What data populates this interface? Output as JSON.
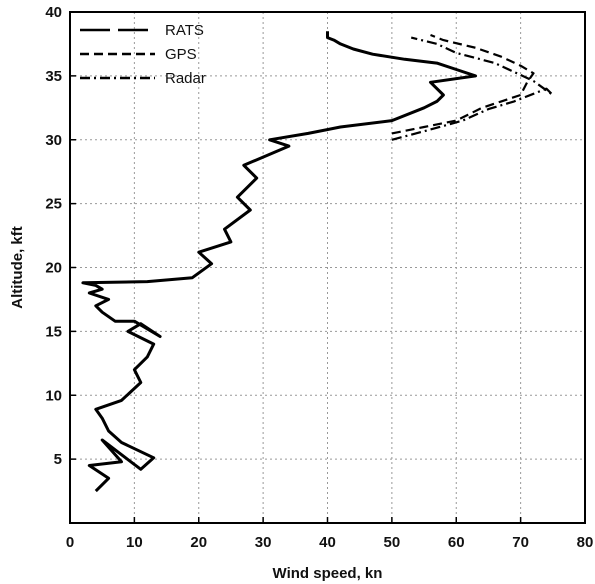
{
  "chart_data": {
    "type": "line",
    "xlabel": "Wind speed, kn",
    "ylabel": "Altitude, kft",
    "xlim": [
      0,
      80
    ],
    "ylim": [
      0,
      40
    ],
    "xticks": [
      "0",
      "10",
      "20",
      "30",
      "40",
      "50",
      "60",
      "70",
      "80"
    ],
    "yticks": [
      "5",
      "10",
      "15",
      "20",
      "25",
      "30",
      "35",
      "40"
    ],
    "grid": true,
    "legend_position": "top-left",
    "series": [
      {
        "name": "RATS",
        "dash": "solid",
        "color": "#000000",
        "x": [
          4,
          6,
          3,
          8,
          5,
          11,
          13,
          8,
          6,
          5,
          4,
          8,
          11,
          10,
          12,
          13,
          9,
          11,
          14,
          10,
          7,
          5,
          4,
          6,
          3,
          5,
          4,
          2,
          12,
          19,
          22,
          20,
          25,
          24,
          28,
          26,
          29,
          27,
          34,
          31,
          37,
          42,
          50,
          55,
          57,
          58,
          56,
          63,
          60,
          57,
          52,
          47,
          44,
          42,
          41,
          40,
          40
        ],
        "y": [
          2.5,
          3.5,
          4.5,
          4.8,
          6.5,
          4.2,
          5.1,
          6.3,
          7.2,
          8.2,
          8.9,
          9.6,
          11.0,
          12.0,
          13.0,
          14.0,
          15.0,
          15.6,
          14.6,
          15.8,
          15.8,
          16.5,
          17.0,
          17.5,
          18.0,
          18.3,
          18.6,
          18.8,
          18.9,
          19.2,
          20.3,
          21.2,
          22.0,
          23.0,
          24.5,
          25.5,
          27.0,
          28.0,
          29.5,
          30.0,
          30.5,
          31.0,
          31.5,
          32.5,
          33.0,
          33.5,
          34.5,
          35.0,
          35.5,
          36.0,
          36.3,
          36.7,
          37.1,
          37.5,
          37.8,
          38.0,
          38.5
        ]
      },
      {
        "name": "GPS",
        "dash": "dashed",
        "color": "#000000",
        "x": [
          50,
          55,
          60,
          64,
          67,
          70,
          71,
          72,
          70,
          67,
          63,
          58,
          56
        ],
        "y": [
          30.5,
          31.0,
          31.5,
          32.5,
          33.0,
          33.5,
          34.5,
          35.2,
          35.8,
          36.5,
          37.2,
          37.8,
          38.2
        ]
      },
      {
        "name": "Radar",
        "dash": "dash-dot",
        "color": "#000000",
        "x": [
          50,
          56,
          61,
          65,
          69,
          72,
          74,
          75,
          72,
          69,
          66,
          60,
          57,
          53
        ],
        "y": [
          30.0,
          30.8,
          31.5,
          32.4,
          33.0,
          33.6,
          34.0,
          33.5,
          34.6,
          35.3,
          36.0,
          36.8,
          37.5,
          38.0
        ]
      }
    ]
  }
}
